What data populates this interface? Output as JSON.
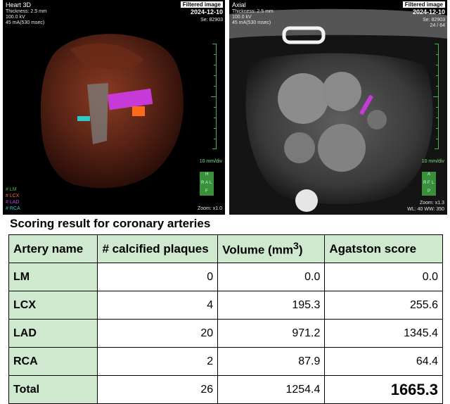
{
  "panel_3d": {
    "title": "Heart 3D",
    "thickness": "Thickness: 2.5 mm",
    "kv": "100.0 kV",
    "ma": "45 mA(530 msec)",
    "badge": "Filtered image",
    "date": "2024-12-10",
    "series": "Se: 82903",
    "scale": "10  mm/div",
    "zoom": "Zoom: x1.0",
    "legend": [
      {
        "label": "# LM",
        "color": "#38c038"
      },
      {
        "label": "# LCX",
        "color": "#ff6a1a"
      },
      {
        "label": "# LAD",
        "color": "#d040e8"
      },
      {
        "label": "# RCA",
        "color": "#30c8c8"
      }
    ]
  },
  "panel_axial": {
    "title": "Axial",
    "thickness": "Thickness: 2.5 mm",
    "kv": "100.0 kV",
    "ma": "45 mA(530 msec)",
    "badge": "Filtered image",
    "date": "2024-12-10",
    "series": "Se: 82903",
    "image_no": "24 / 64",
    "scale": "10  mm/div",
    "zoom": "Zoom: x1.3",
    "window": "WL: 40  WW: 350"
  },
  "result_title": "Scoring result for coronary arteries",
  "table": {
    "headers": [
      "Artery name",
      "# calcified plaques",
      "Volume (mm",
      "Agatston score"
    ],
    "header_volume_sup": "3",
    "header_volume_close": ")",
    "rows": [
      {
        "name": "LM",
        "plaques": "0",
        "volume": "0.0",
        "agatston": "0.0"
      },
      {
        "name": "LCX",
        "plaques": "4",
        "volume": "195.3",
        "agatston": "255.6"
      },
      {
        "name": "LAD",
        "plaques": "20",
        "volume": "971.2",
        "agatston": "1345.4"
      },
      {
        "name": "RCA",
        "plaques": "2",
        "volume": "87.9",
        "agatston": "64.4"
      },
      {
        "name": "Total",
        "plaques": "26",
        "volume": "1254.4",
        "agatston": "1665.3"
      }
    ]
  }
}
